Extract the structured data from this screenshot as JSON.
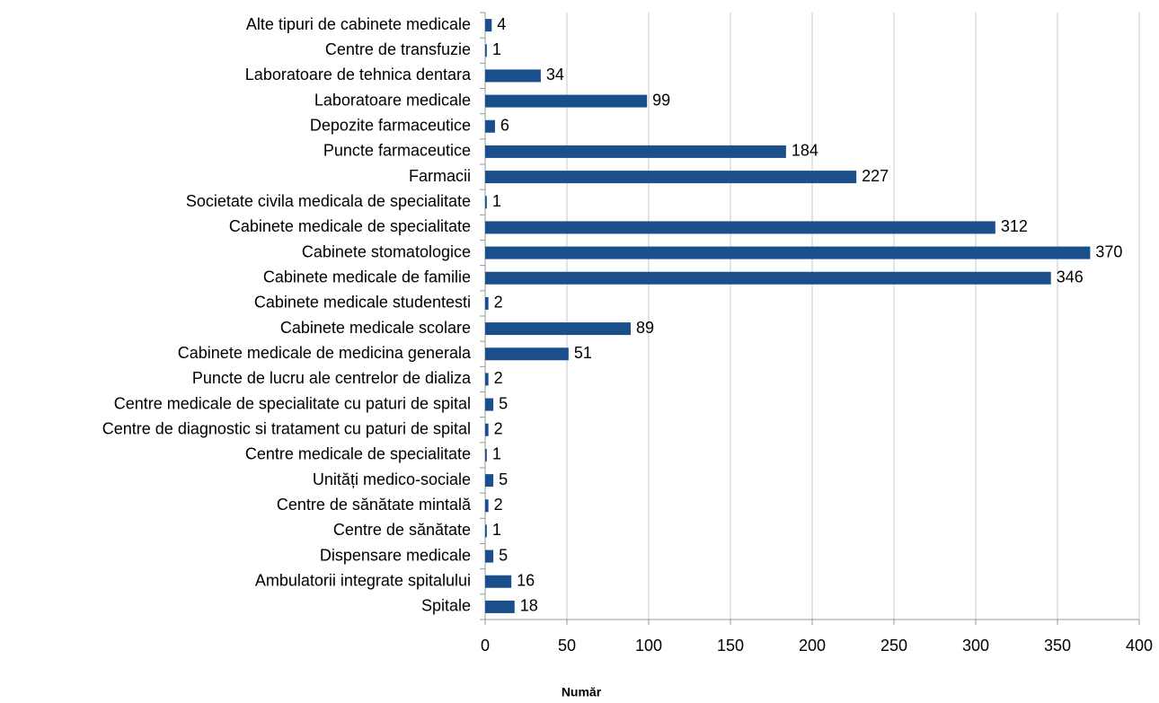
{
  "chart_data": {
    "type": "bar",
    "orientation": "horizontal",
    "categories": [
      "Alte tipuri de cabinete medicale",
      "Centre de transfuzie",
      "Laboratoare de tehnica dentara",
      "Laboratoare medicale",
      "Depozite farmaceutice",
      "Puncte farmaceutice",
      "Farmacii",
      "Societate civila medicala de specialitate",
      "Cabinete medicale de specialitate",
      "Cabinete stomatologice",
      "Cabinete medicale de familie",
      "Cabinete medicale studentesti",
      "Cabinete medicale scolare",
      "Cabinete medicale de medicina generala",
      "Puncte de lucru ale centrelor de dializa",
      "Centre medicale de specialitate cu paturi de spital",
      "Centre de diagnostic si tratament cu paturi de spital",
      "Centre medicale de specialitate",
      "Unități medico-sociale",
      "Centre de sănătate mintală",
      "Centre de sănătate",
      "Dispensare medicale",
      "Ambulatorii integrate spitalului",
      "Spitale"
    ],
    "values": [
      4,
      1,
      34,
      99,
      6,
      184,
      227,
      1,
      312,
      370,
      346,
      2,
      89,
      51,
      2,
      5,
      2,
      1,
      5,
      2,
      1,
      5,
      16,
      18
    ],
    "color": "#1b4f8c",
    "xlabel": "Număr",
    "xlim": [
      0,
      400
    ],
    "xticks": [
      0,
      50,
      100,
      150,
      200,
      250,
      300,
      350,
      400
    ],
    "grid": true
  }
}
